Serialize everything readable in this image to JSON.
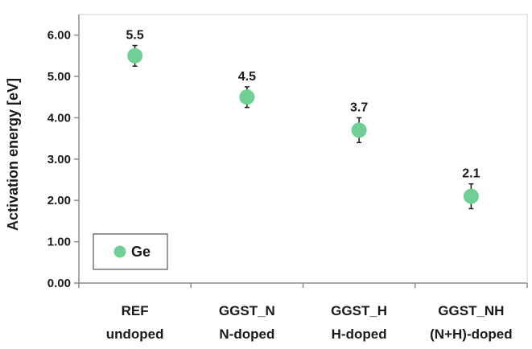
{
  "chart_data": {
    "type": "scatter",
    "title": "",
    "xlabel": "",
    "ylabel": "Activation energy [eV]",
    "ylim": [
      0,
      6.5
    ],
    "yticks": [
      "0.00",
      "1.00",
      "2.00",
      "3.00",
      "4.00",
      "5.00",
      "6.00"
    ],
    "ytick_values": [
      0,
      1,
      2,
      3,
      4,
      5,
      6
    ],
    "categories": [
      {
        "line1": "REF",
        "line2": "undoped"
      },
      {
        "line1": "GGST_N",
        "line2": "N-doped"
      },
      {
        "line1": "GGST_H",
        "line2": "H-doped"
      },
      {
        "line1": "GGST_NH",
        "line2": "(N+H)-doped"
      }
    ],
    "series": [
      {
        "name": "Ge",
        "color": "#6fcf97",
        "values": [
          5.5,
          4.5,
          3.7,
          2.1
        ],
        "error": [
          0.25,
          0.25,
          0.3,
          0.3
        ],
        "data_labels": [
          "5.5",
          "4.5",
          "3.7",
          "2.1"
        ]
      }
    ],
    "grid": false,
    "legend_position": "bottom-left"
  }
}
